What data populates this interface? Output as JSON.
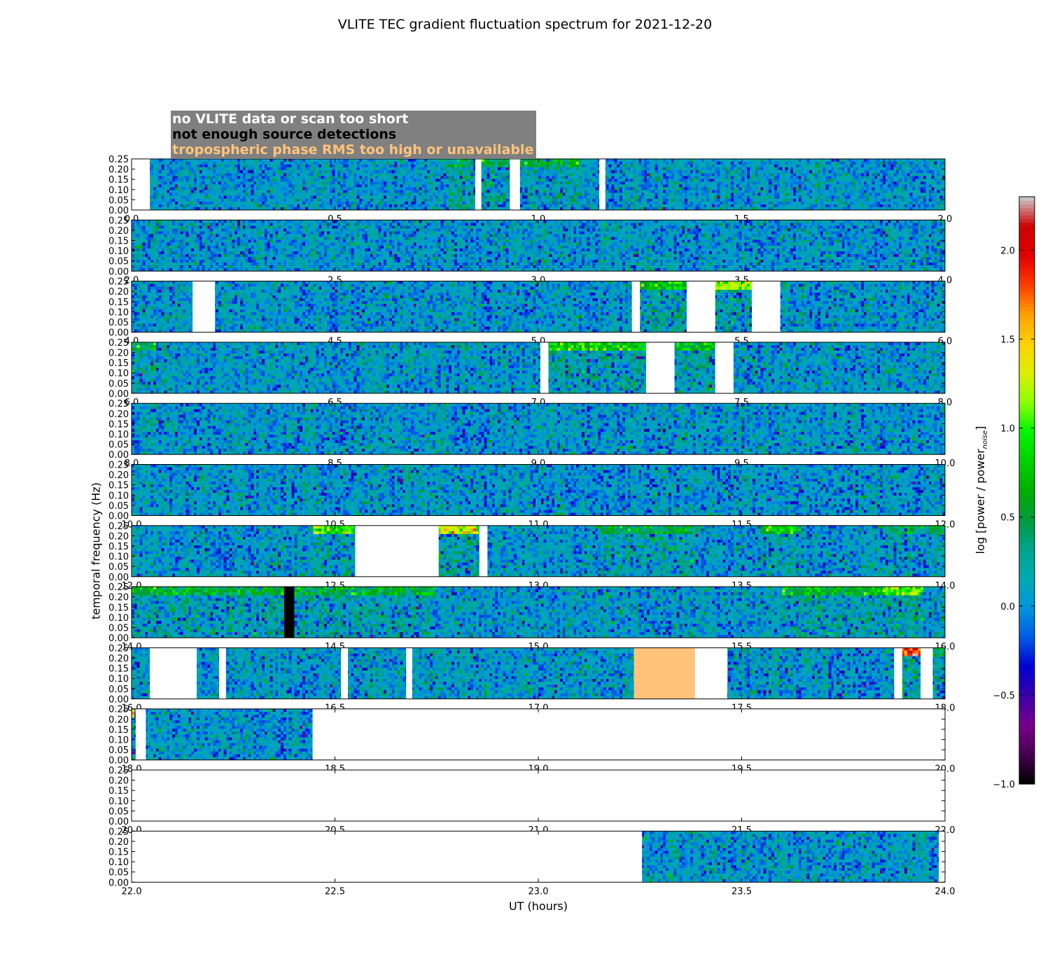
{
  "chart_data": {
    "type": "heatmap",
    "title": "VLITE TEC gradient fluctuation spectrum for 2021-12-20",
    "xlabel": "UT (hours)",
    "ylabel": "temporal frequency (Hz)",
    "ylim": [
      0,
      0.25
    ],
    "yticks": [
      "0.00",
      "0.05",
      "0.10",
      "0.15",
      "0.20",
      "0.25"
    ],
    "legend": {
      "placement": "top-left",
      "entries": [
        {
          "label": "no VLITE data or scan too short",
          "color": "#ffffff"
        },
        {
          "label": "not enough source detections",
          "color": "#000000"
        },
        {
          "label": "tropospheric phase RMS too high or unavailable",
          "color": "#ffc47a"
        }
      ]
    },
    "colorbar": {
      "label_main": "log [power / power",
      "label_sub": "noise",
      "label_end": "]",
      "range": [
        -1.0,
        2.3
      ],
      "ticks": [
        "−1.0",
        "−0.5",
        "0.0",
        "0.5",
        "1.0",
        "1.5",
        "2.0"
      ],
      "colormap": "nipy_spectral"
    },
    "panels": [
      {
        "range": [
          0,
          2
        ],
        "ticks": [
          "0.0",
          "0.5",
          "1.0",
          "1.5",
          "2.0"
        ],
        "gaps": [
          [
            0.0,
            0.045
          ],
          [
            0.845,
            0.86
          ],
          [
            0.93,
            0.955
          ],
          [
            1.15,
            1.165
          ]
        ],
        "no_detect": [],
        "tropo": [],
        "hot": [
          [
            0.76,
            0.84,
            0.25,
            0.3
          ],
          [
            0.86,
            0.93,
            0.25,
            0.35
          ],
          [
            0.955,
            1.1,
            0.15,
            0.4
          ]
        ]
      },
      {
        "range": [
          2,
          4
        ],
        "ticks": [
          "2.0",
          "2.5",
          "3.0",
          "3.5",
          "4.0"
        ],
        "gaps": [],
        "no_detect": [],
        "tropo": [],
        "hot": []
      },
      {
        "range": [
          4,
          6
        ],
        "ticks": [
          "4.0",
          "4.5",
          "5.0",
          "5.5",
          "6.0"
        ],
        "gaps": [
          [
            4.15,
            4.205
          ],
          [
            5.23,
            5.25
          ],
          [
            5.365,
            5.435
          ],
          [
            5.525,
            5.595
          ]
        ],
        "no_detect": [],
        "tropo": [],
        "hot": [
          [
            5.25,
            5.365,
            0.2,
            0.6
          ],
          [
            5.435,
            5.525,
            0.3,
            0.95
          ]
        ]
      },
      {
        "range": [
          6,
          8
        ],
        "ticks": [
          "6.0",
          "6.5",
          "7.0",
          "7.5",
          "8.0"
        ],
        "gaps": [
          [
            7.005,
            7.025
          ],
          [
            7.265,
            7.335
          ],
          [
            7.435,
            7.48
          ]
        ],
        "no_detect": [],
        "tropo": [],
        "hot": [
          [
            6.0,
            6.06,
            0.3,
            0.3
          ],
          [
            7.025,
            7.265,
            0.25,
            0.7
          ],
          [
            7.335,
            7.435,
            0.2,
            0.5
          ]
        ]
      },
      {
        "range": [
          8,
          10
        ],
        "ticks": [
          "8.0",
          "8.5",
          "9.0",
          "9.5",
          "10.0"
        ],
        "gaps": [],
        "no_detect": [],
        "tropo": [],
        "hot": []
      },
      {
        "range": [
          10,
          12
        ],
        "ticks": [
          "10.0",
          "10.5",
          "11.0",
          "11.5",
          "12.0"
        ],
        "gaps": [],
        "no_detect": [],
        "tropo": [],
        "hot": []
      },
      {
        "range": [
          12,
          14
        ],
        "ticks": [
          "12.0",
          "12.5",
          "13.0",
          "13.5",
          "14.0"
        ],
        "gaps": [
          [
            12.55,
            12.755
          ],
          [
            12.855,
            12.875
          ]
        ],
        "no_detect": [],
        "tropo": [],
        "hot": [
          [
            12.45,
            12.55,
            0.25,
            0.9
          ],
          [
            12.755,
            12.855,
            0.35,
            1.2
          ],
          [
            13.15,
            13.4,
            0.15,
            0.3
          ],
          [
            13.55,
            13.65,
            0.2,
            0.6
          ],
          [
            13.85,
            14.0,
            0.15,
            0.3
          ]
        ]
      },
      {
        "range": [
          14,
          16
        ],
        "ticks": [
          "14.0",
          "14.5",
          "15.0",
          "15.5",
          "16.0"
        ],
        "gaps": [],
        "no_detect": [
          [
            14.375,
            14.4
          ]
        ],
        "tropo": [],
        "hot": [
          [
            14.0,
            14.4,
            0.2,
            0.4
          ],
          [
            14.4,
            14.75,
            0.25,
            0.4
          ],
          [
            15.6,
            15.85,
            0.2,
            0.5
          ],
          [
            15.85,
            15.95,
            0.3,
            0.8
          ]
        ]
      },
      {
        "range": [
          16,
          18
        ],
        "ticks": [
          "16.0",
          "16.5",
          "17.0",
          "17.5",
          "18.0"
        ],
        "gaps": [
          [
            16.045,
            16.16
          ],
          [
            16.215,
            16.232
          ],
          [
            16.515,
            16.532
          ],
          [
            16.675,
            16.69
          ],
          [
            17.235,
            17.385
          ],
          [
            17.385,
            17.465
          ],
          [
            17.875,
            17.895
          ],
          [
            17.94,
            17.97
          ]
        ],
        "no_detect": [],
        "tropo": [
          [
            17.235,
            17.385
          ]
        ],
        "hot": [
          [
            17.895,
            17.94,
            0.5,
            1.7
          ],
          [
            17.97,
            18.0,
            0.2,
            0.4
          ]
        ]
      },
      {
        "range": [
          18,
          20
        ],
        "ticks": [
          "18.0",
          "18.5",
          "19.0",
          "19.5",
          "20.0"
        ],
        "gaps": [
          [
            18.01,
            18.035
          ],
          [
            18.445,
            20.0
          ]
        ],
        "no_detect": [],
        "tropo": [],
        "hot": [
          [
            18.0,
            18.01,
            0.6,
            1.3
          ]
        ]
      },
      {
        "range": [
          20,
          22
        ],
        "ticks": [
          "20.0",
          "20.5",
          "21.0",
          "21.5",
          "22.0"
        ],
        "gaps": [
          [
            20.0,
            22.0
          ]
        ],
        "no_detect": [],
        "tropo": [],
        "hot": []
      },
      {
        "range": [
          22,
          24
        ],
        "ticks": [
          "22.0",
          "22.5",
          "23.0",
          "23.5",
          "24.0"
        ],
        "gaps": [
          [
            22.0,
            23.255
          ],
          [
            23.985,
            24.0
          ]
        ],
        "no_detect": [],
        "tropo": [],
        "hot": []
      }
    ]
  }
}
